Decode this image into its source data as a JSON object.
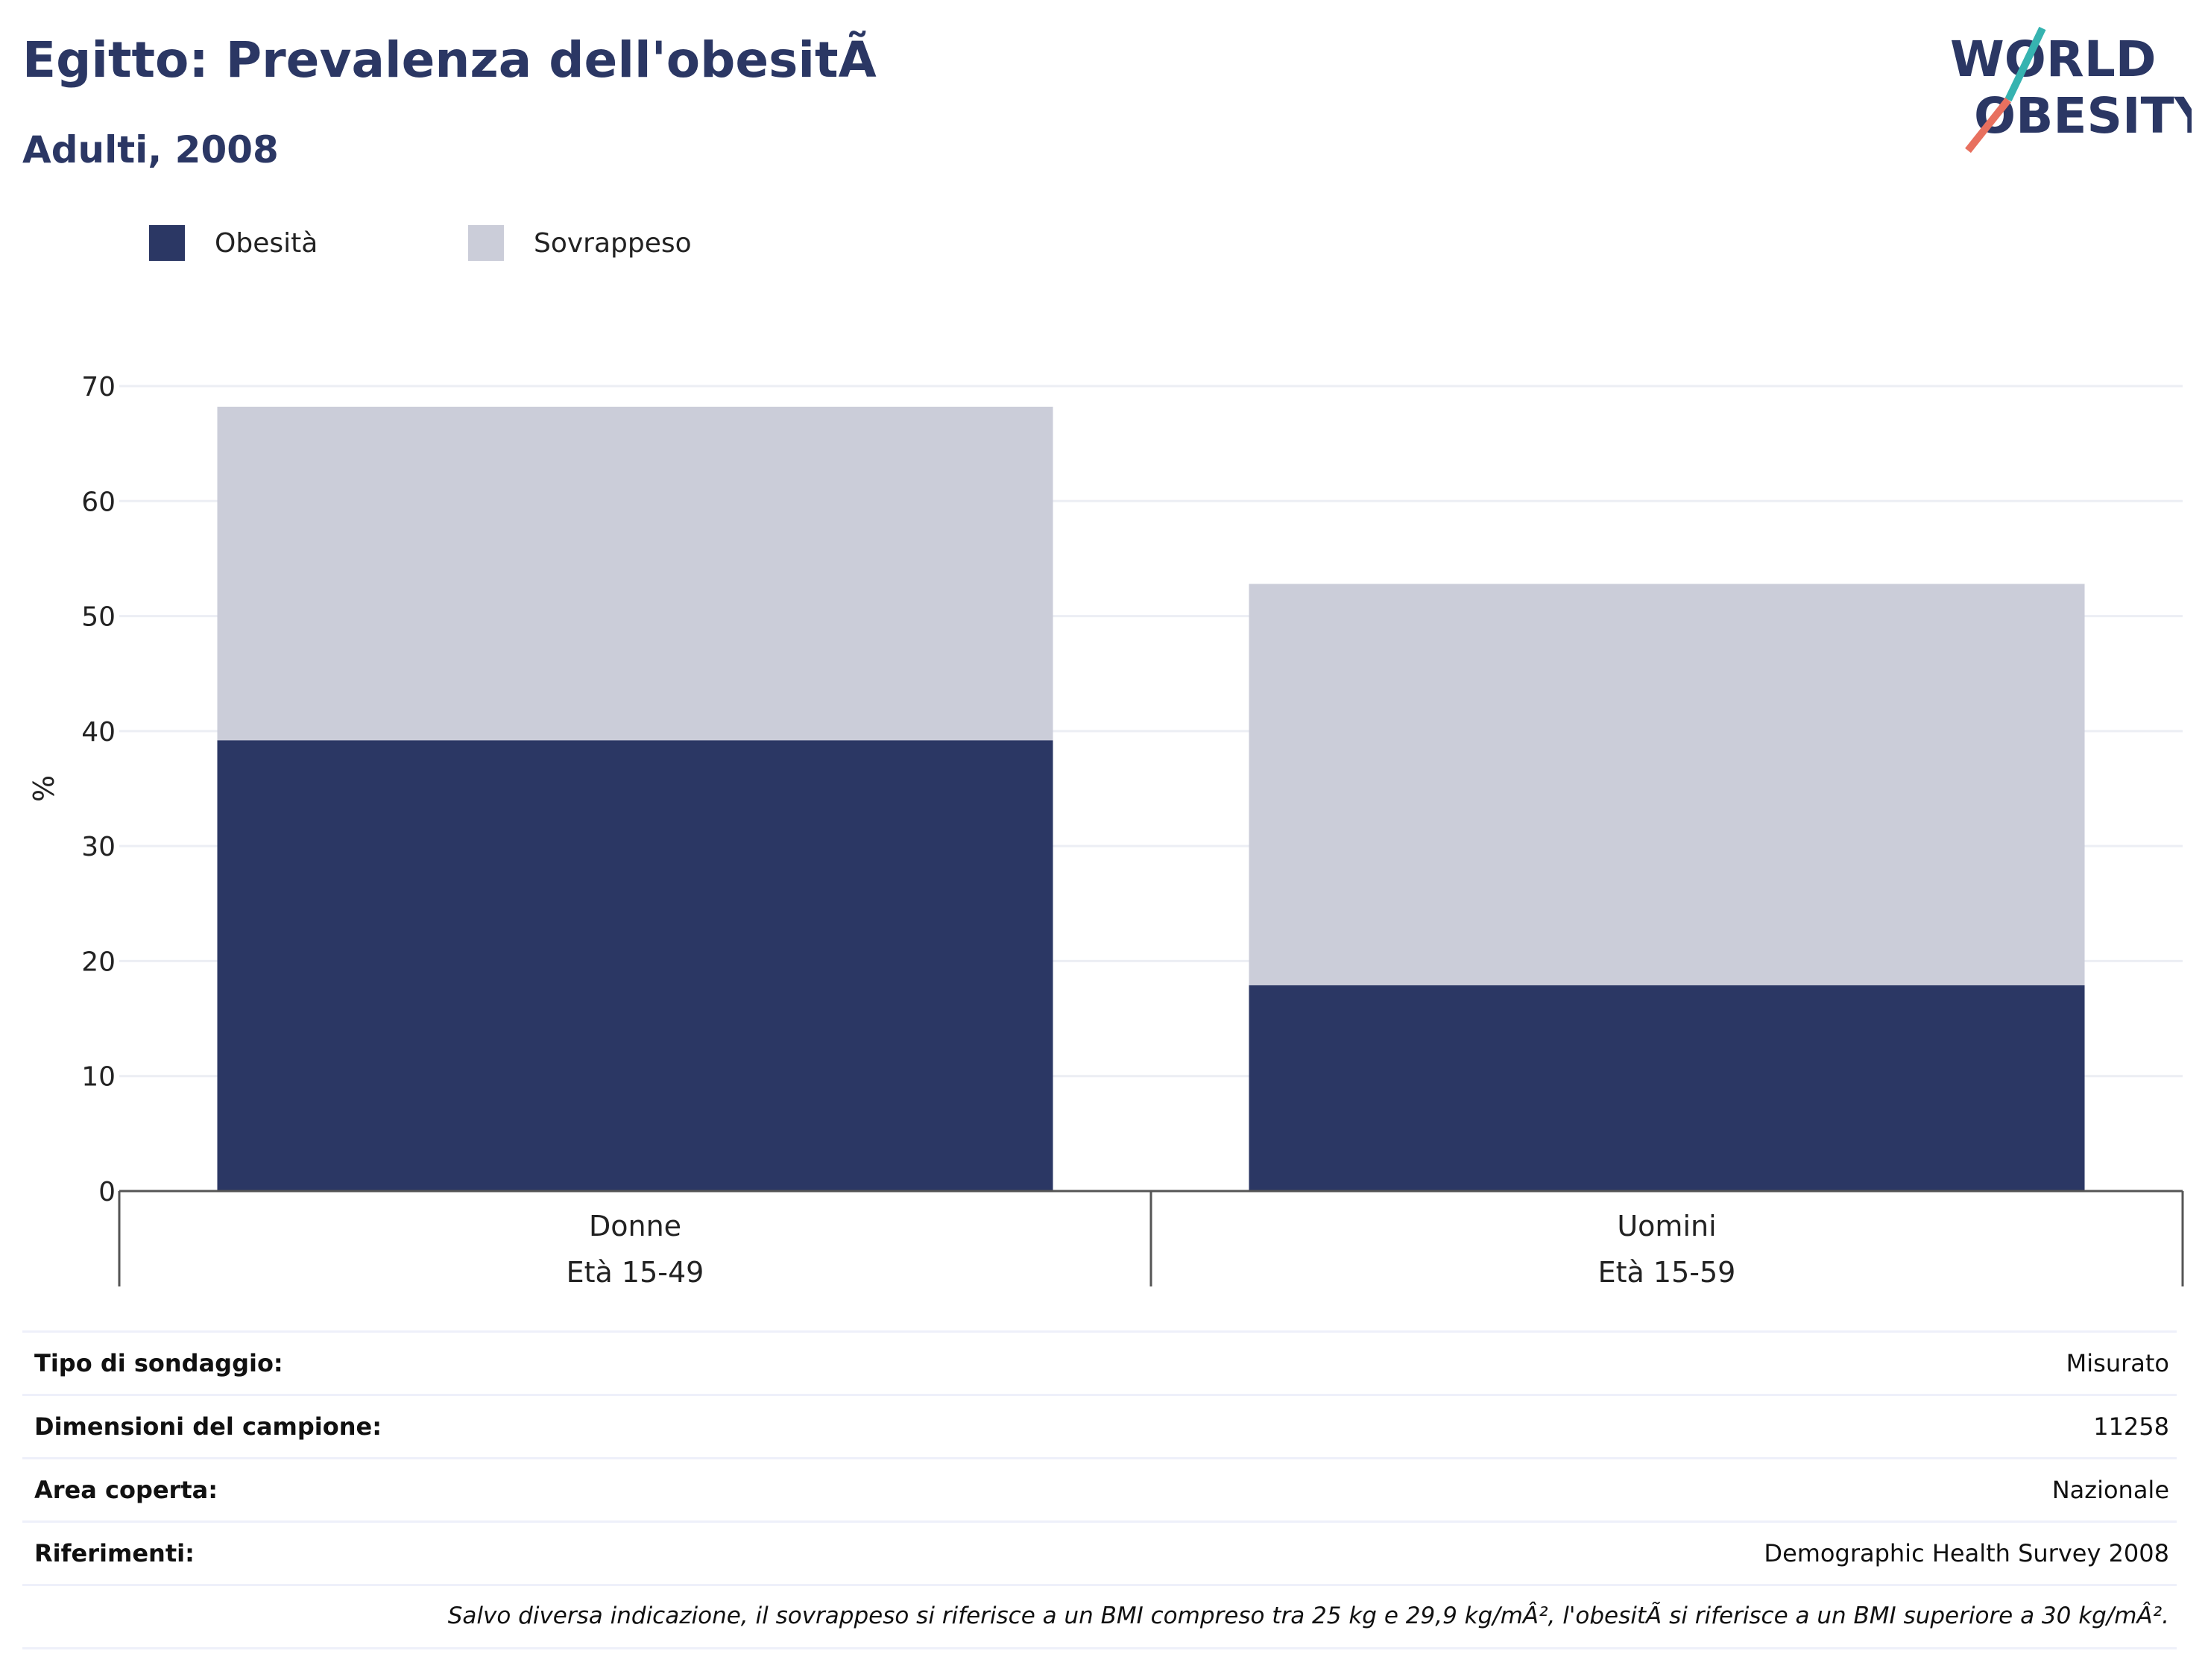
{
  "header": {
    "title": "Egitto: Prevalenza dell'obesitÃ",
    "subtitle": "Adulti, 2008"
  },
  "logo": {
    "line1": "WORLD",
    "line2": "OBESITY"
  },
  "colors": {
    "obesity": "#2b3764",
    "overweight": "#cbcdd9",
    "text": "#2b3764"
  },
  "chart_data": {
    "type": "bar",
    "stacked": true,
    "categories": [
      "Donne",
      "Uomini"
    ],
    "category_sublabels": [
      "Età 15-49",
      "Età 15-59"
    ],
    "series": [
      {
        "name": "Obesità",
        "values": [
          39.2,
          17.9
        ]
      },
      {
        "name": "Sovrappeso",
        "values": [
          29.0,
          34.9
        ]
      }
    ],
    "ylabel": "%",
    "ylim": [
      0,
      70
    ],
    "yticks": [
      0,
      10,
      20,
      30,
      40,
      50,
      60,
      70
    ],
    "grid": true,
    "legend_position": "top-left"
  },
  "info": {
    "rows": [
      {
        "key": "Tipo di sondaggio:",
        "value": "Misurato"
      },
      {
        "key": "Dimensioni del campione:",
        "value": "11258"
      },
      {
        "key": "Area coperta:",
        "value": "Nazionale"
      },
      {
        "key": "Riferimenti:",
        "value": "Demographic Health Survey 2008"
      }
    ],
    "footnote": "Salvo diversa indicazione, il sovrappeso si riferisce a un BMI compreso tra 25 kg e 29,9 kg/mÂ², l'obesitÃ  si riferisce a un BMI superiore a 30 kg/mÂ²."
  }
}
